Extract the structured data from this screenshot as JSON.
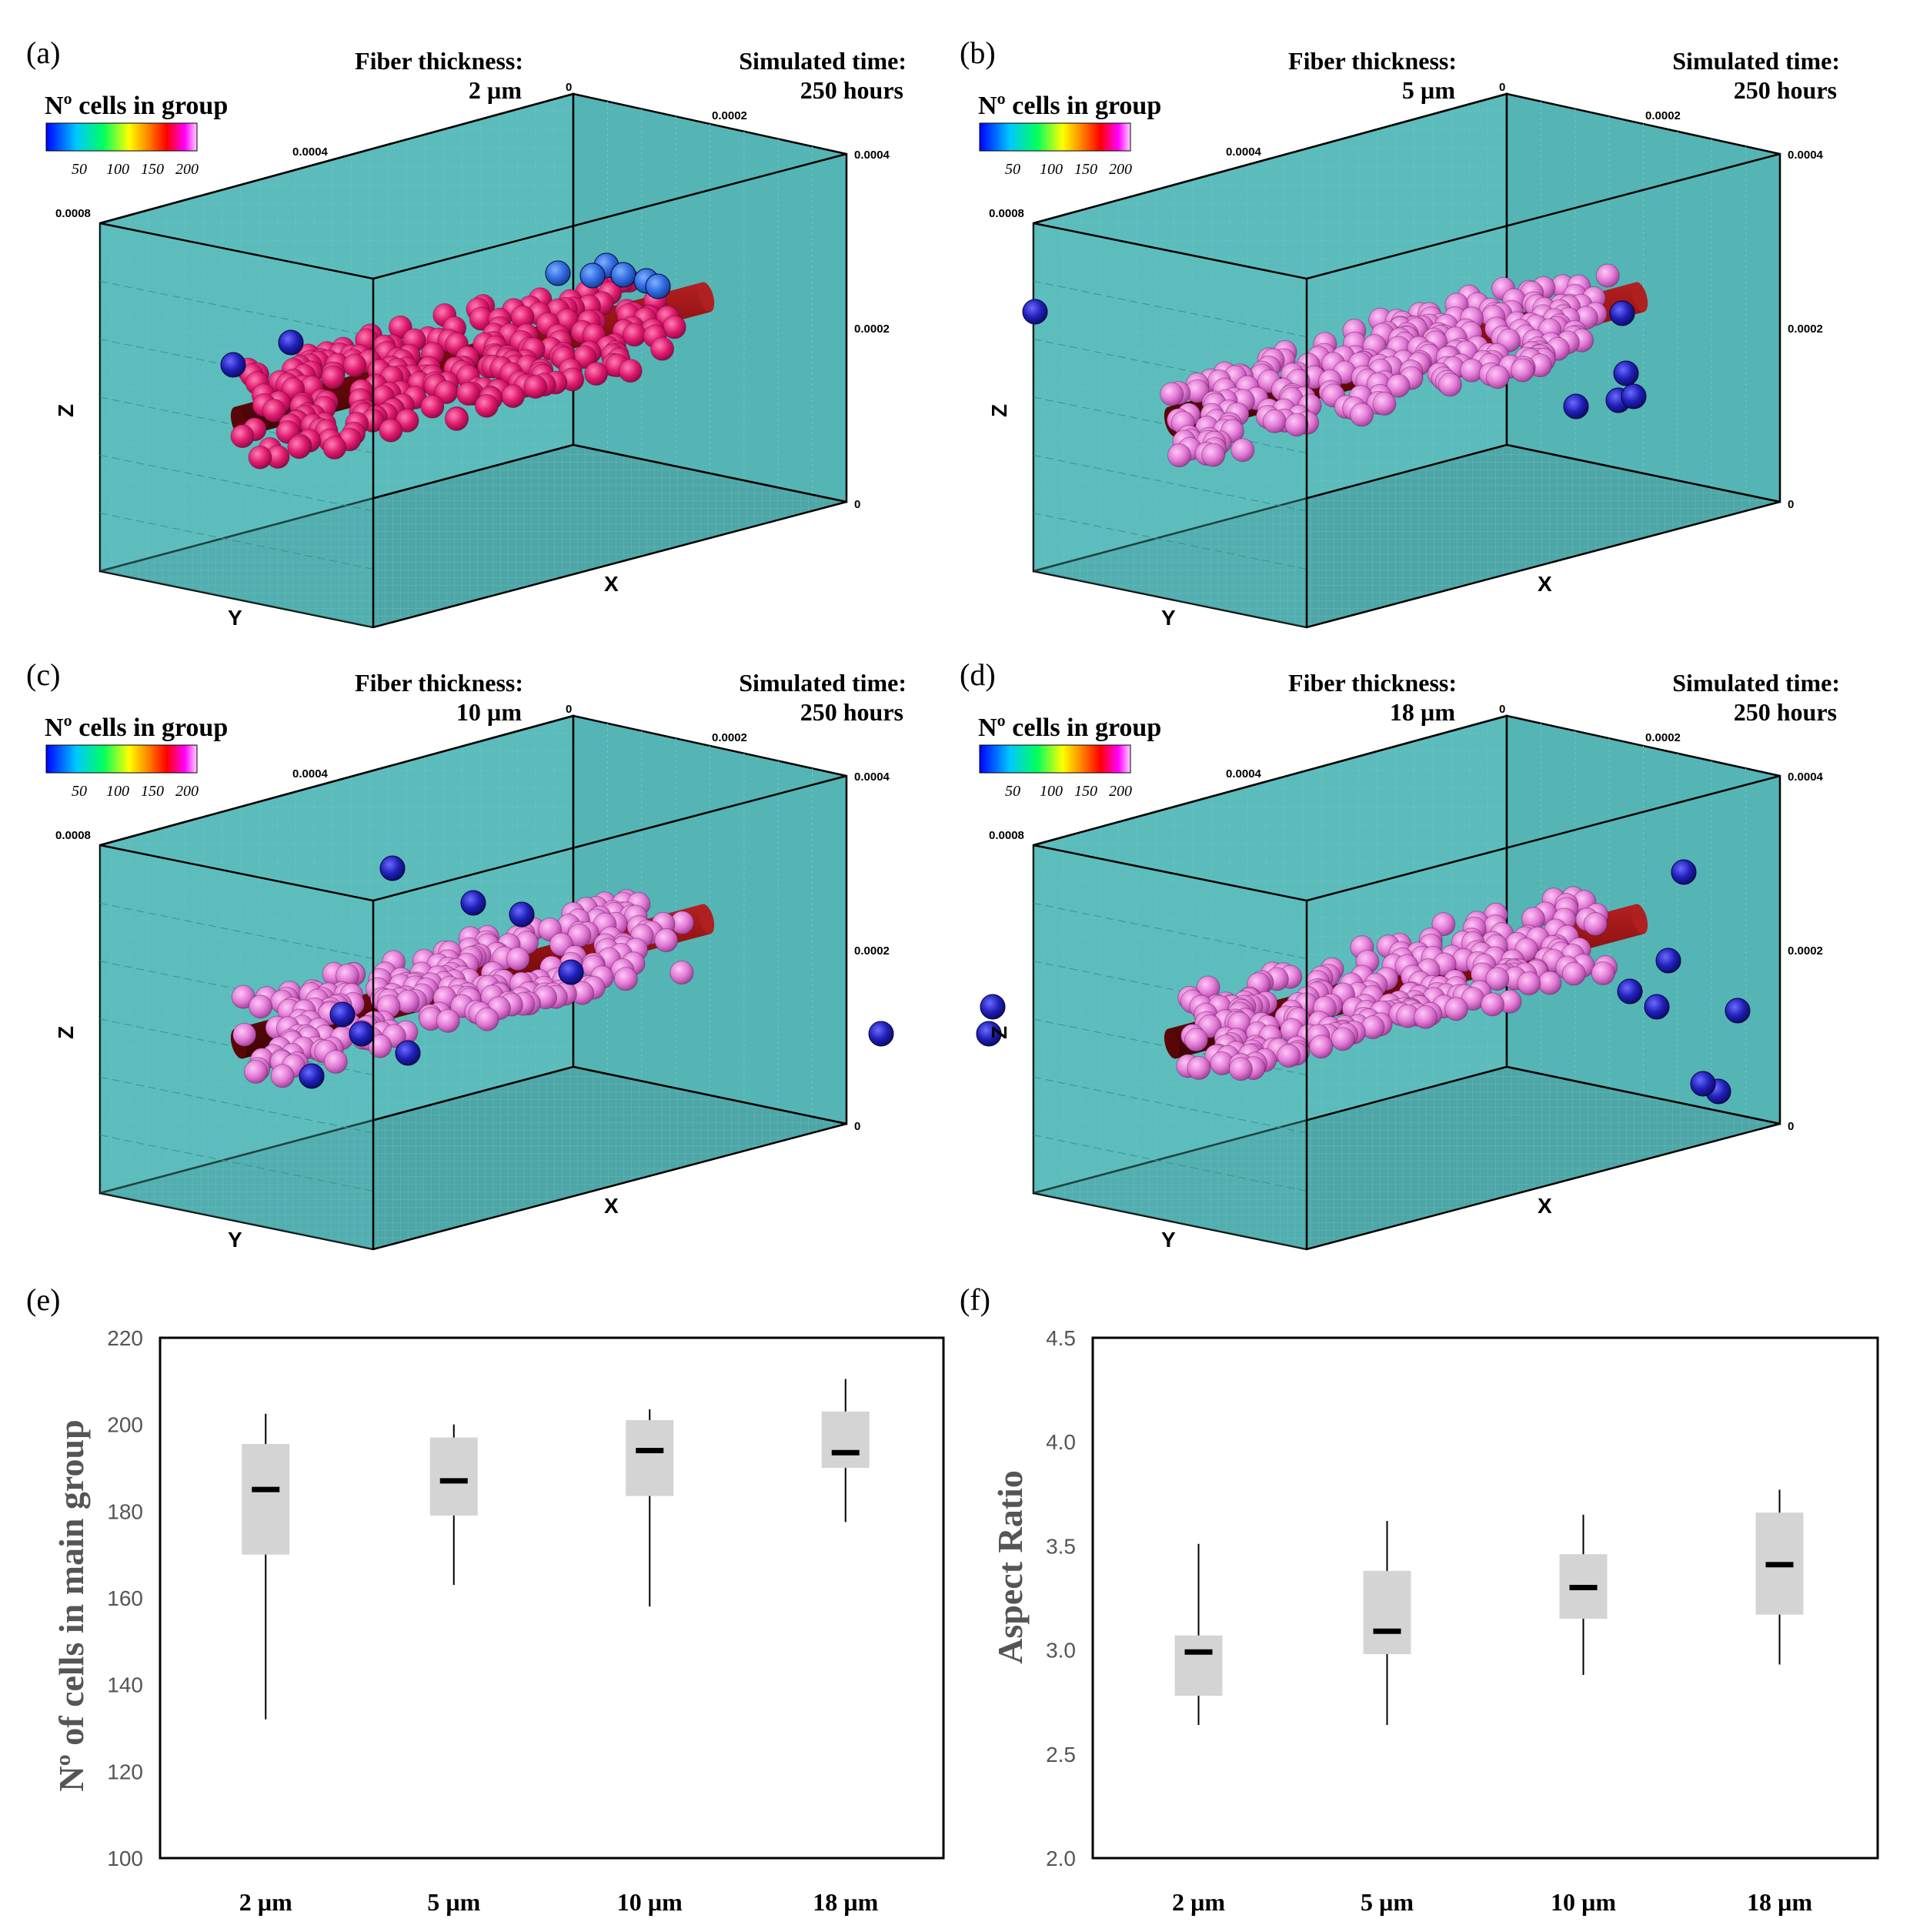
{
  "colors": {
    "box_face": "#5fbfbf",
    "box_face_dark": "#4aa8a8",
    "fiber": "#7a0b0b",
    "fiber_light": "#b01818",
    "cell_a": "#e01a6e",
    "cell_pink": "#e27ad6",
    "cell_blue": "#1f1fb8",
    "box_plot_fill": "#d4d4d4",
    "median": "#000000",
    "axis_text": "#555555"
  },
  "panels": [
    {
      "letter": "(a)",
      "fiber_label": "Fiber thickness:",
      "fiber_value": "2 µm",
      "time_label": "Simulated time:",
      "time_value": "250 hours",
      "cell_color": "cell_a"
    },
    {
      "letter": "(b)",
      "fiber_label": "Fiber thickness:",
      "fiber_value": "5 µm",
      "time_label": "Simulated time:",
      "time_value": "250 hours",
      "cell_color": "cell_pink"
    },
    {
      "letter": "(c)",
      "fiber_label": "Fiber thickness:",
      "fiber_value": "10 µm",
      "time_label": "Simulated time:",
      "time_value": "250 hours",
      "cell_color": "cell_pink"
    },
    {
      "letter": "(d)",
      "fiber_label": "Fiber thickness:",
      "fiber_value": "18 µm",
      "time_label": "Simulated time:",
      "time_value": "250 hours",
      "cell_color": "cell_pink"
    }
  ],
  "legend": {
    "title": "Nº cells in group",
    "ticks": [
      "50",
      "100",
      "150",
      "200"
    ]
  },
  "axis3d": {
    "top_ticks": [
      "0",
      "0.0002",
      "0.0004",
      "0.0008"
    ],
    "right_ticks": [
      "0.0004",
      "0.0002",
      "0"
    ],
    "labels": {
      "z": "Z",
      "x": "X",
      "y": "Y"
    }
  },
  "chart_data": [
    {
      "panel": "(e)",
      "type": "box",
      "title": "",
      "xlabel": "",
      "ylabel": "Nº of cells in main group",
      "ylim": [
        100,
        220
      ],
      "yticks": [
        100,
        120,
        140,
        160,
        180,
        200,
        220
      ],
      "ytick_labels": [
        "100",
        "120",
        "140",
        "160",
        "180",
        "200",
        "220"
      ],
      "categories": [
        "2 µm",
        "5 µm",
        "10 µm",
        "18 µm"
      ],
      "boxes": [
        {
          "min": 132,
          "q1": 170,
          "median": 185,
          "q3": 195.5,
          "max": 202.5
        },
        {
          "min": 163,
          "q1": 179,
          "median": 187,
          "q3": 197,
          "max": 200
        },
        {
          "min": 158,
          "q1": 183.5,
          "median": 194,
          "q3": 201,
          "max": 203.5
        },
        {
          "min": 177.5,
          "q1": 190,
          "median": 193.5,
          "q3": 203,
          "max": 210.5
        }
      ]
    },
    {
      "panel": "(f)",
      "type": "box",
      "title": "",
      "xlabel": "",
      "ylabel": "Aspect Ratio",
      "ylim": [
        2.0,
        4.5
      ],
      "yticks": [
        2.0,
        2.5,
        3.0,
        3.5,
        4.0,
        4.5
      ],
      "ytick_labels": [
        "2.0",
        "2.5",
        "3.0",
        "3.5",
        "4.0",
        "4.5"
      ],
      "categories": [
        "2 µm",
        "5 µm",
        "10 µm",
        "18 µm"
      ],
      "boxes": [
        {
          "min": 2.64,
          "q1": 2.78,
          "median": 2.99,
          "q3": 3.07,
          "max": 3.51
        },
        {
          "min": 2.64,
          "q1": 2.98,
          "median": 3.09,
          "q3": 3.38,
          "max": 3.62
        },
        {
          "min": 2.88,
          "q1": 3.15,
          "median": 3.3,
          "q3": 3.46,
          "max": 3.65
        },
        {
          "min": 2.93,
          "q1": 3.17,
          "median": 3.41,
          "q3": 3.66,
          "max": 3.77
        }
      ]
    }
  ]
}
